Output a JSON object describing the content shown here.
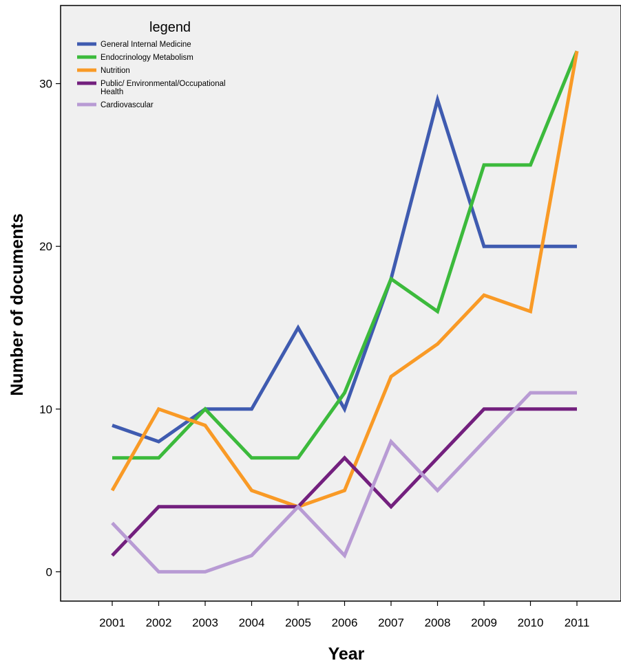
{
  "chart_data": {
    "type": "line",
    "xlabel": "Year",
    "ylabel": "Number of documents",
    "x": [
      2001,
      2002,
      2003,
      2004,
      2005,
      2006,
      2007,
      2008,
      2009,
      2010,
      2011
    ],
    "x_tick_labels": [
      "2001",
      "2002",
      "2003",
      "2004",
      "2005",
      "2006",
      "2007",
      "2008",
      "2009",
      "2010",
      "2011"
    ],
    "ylim": [
      -1.8,
      34.8
    ],
    "y_ticks": [
      0,
      10,
      20,
      30
    ],
    "y_tick_labels": [
      "0",
      "10",
      "20",
      "30"
    ],
    "grid": false,
    "background_color": "#f0f0f0",
    "legend": {
      "title": "legend",
      "placement": "top-left",
      "entries": [
        {
          "series": 0,
          "lines": [
            "General Internal Medicine"
          ]
        },
        {
          "series": 1,
          "lines": [
            "Endocrinology Metabolism"
          ]
        },
        {
          "series": 2,
          "lines": [
            "Nutrition"
          ]
        },
        {
          "series": 3,
          "lines": [
            "Public/ Environmental/Occupational",
            "Health"
          ]
        },
        {
          "series": 4,
          "lines": [
            "Cardiovascular"
          ]
        }
      ]
    },
    "series": [
      {
        "name": "General Internal Medicine",
        "color": "#3f5bb0",
        "values": [
          9,
          8,
          10,
          10,
          15,
          10,
          18,
          29,
          20,
          20,
          20
        ]
      },
      {
        "name": "Endocrinology Metabolism",
        "color": "#3cba3c",
        "values": [
          7,
          7,
          10,
          7,
          7,
          11,
          18,
          16,
          25,
          25,
          32
        ]
      },
      {
        "name": "Nutrition",
        "color": "#f99a26",
        "values": [
          5,
          10,
          9,
          5,
          4,
          5,
          12,
          14,
          17,
          16,
          32
        ]
      },
      {
        "name": "Public/ Environmental/Occupational Health",
        "color": "#73207e",
        "values": [
          1,
          4,
          4,
          4,
          4,
          7,
          4,
          7,
          10,
          10,
          10
        ]
      },
      {
        "name": "Cardiovascular",
        "color": "#b89bd4",
        "values": [
          3,
          0,
          0,
          1,
          4,
          1,
          8,
          5,
          8,
          11,
          11
        ]
      }
    ]
  }
}
